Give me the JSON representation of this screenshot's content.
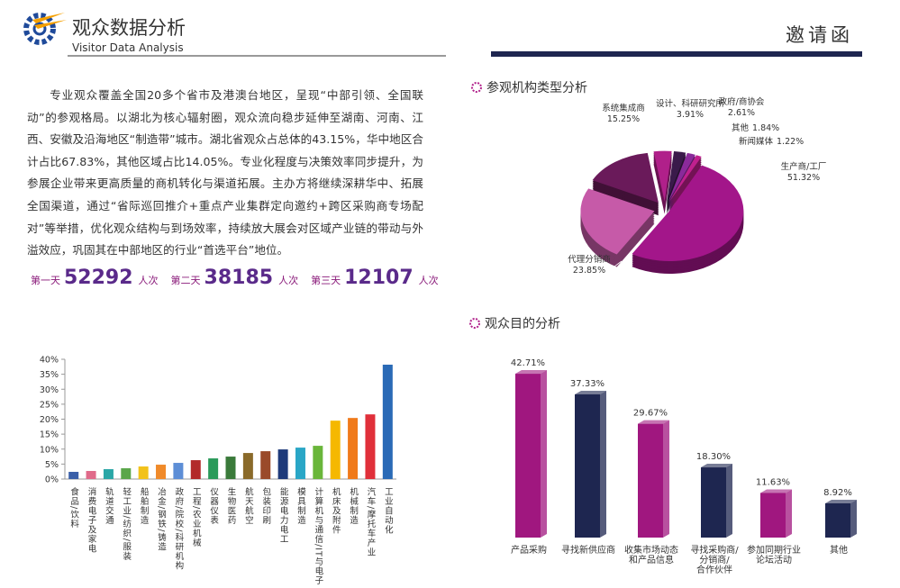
{
  "header": {
    "title": "观众数据分析",
    "subtitle": "Visitor Data Analysis",
    "badge": "邀请函"
  },
  "intro": "专业观众覆盖全国20多个省市及港澳台地区，呈现“中部引领、全国联动”的参观格局。以湖北为核心辐射圈，观众流向稳步延伸至湖南、河南、江西、安徽及沿海地区“制造带”城市。湖北省观众占总体的43.15%，华中地区合计占比67.83%，其他区域占比14.05%。专业化程度与决策效率同步提升，为参展企业带来更高质量的商机转化与渠道拓展。主办方将继续深耕华中、拓展全国渠道，通过“省际巡回推介+重点产业集群定向邀约+跨区采购商专场配对”等举措，优化观众结构与到场效率，持续放大展会对区域产业链的带动与外溢效应，巩固其在中部地区的行业“首选平台”地位。",
  "stats": [
    {
      "label": "第一天",
      "value": "52292",
      "unit": "人次"
    },
    {
      "label": "第二天",
      "value": "38185",
      "unit": "人次"
    },
    {
      "label": "第三天",
      "value": "12107",
      "unit": "人次"
    }
  ],
  "chart_data": [
    {
      "type": "bar",
      "categories": [
        "食品/饮料",
        "消费电子及家电",
        "轨道交通",
        "轻工业/纺织/服装",
        "船舶制造",
        "冶金/钢铁/铸造",
        "政府/院校/科研机构",
        "工程/农业机械",
        "仪器仪表",
        "生物医药",
        "航天航空",
        "包装印刷",
        "能源电力电工",
        "模具制造",
        "计算机与通信/IT与电子",
        "机床及附件",
        "机械制造",
        "汽车/摩托车产业",
        "工业自动化"
      ],
      "values": [
        2.4,
        2.7,
        3.3,
        3.6,
        4.2,
        4.8,
        5.4,
        6.3,
        6.9,
        7.5,
        8.7,
        9.3,
        9.9,
        10.5,
        11.1,
        19.5,
        20.4,
        21.6,
        38.2
      ],
      "colors": [
        "#3a5fa8",
        "#e06a8a",
        "#2aa6a6",
        "#5aa64a",
        "#f2c21a",
        "#f08a2a",
        "#5d8ed6",
        "#b22a2a",
        "#2a9a5a",
        "#3a7a3a",
        "#8a6a2a",
        "#9a4a2a",
        "#1e3a7a",
        "#2aa6c6",
        "#6ab63a",
        "#f5b800",
        "#f07a1a",
        "#e0303a",
        "#2a6ab6"
      ],
      "ylim": [
        0,
        40
      ],
      "yticks": [
        {
          "value": 0,
          "label": "0%"
        },
        {
          "value": 5,
          "label": "5%"
        },
        {
          "value": 10,
          "label": "10%"
        },
        {
          "value": 15,
          "label": "15%"
        },
        {
          "value": 20,
          "label": "20%"
        },
        {
          "value": 25,
          "label": "25%"
        },
        {
          "value": 30,
          "label": "30%"
        },
        {
          "value": 35,
          "label": "35%"
        },
        {
          "value": 40,
          "label": "40%"
        }
      ]
    },
    {
      "type": "pie",
      "title": "参观机构类型分析",
      "categories": [
        "设计、科研研究所",
        "政府/商协会",
        "其他",
        "新闻媒体",
        "生产商/工厂",
        "代理分销商",
        "系统集成商"
      ],
      "values": [
        3.91,
        2.61,
        1.84,
        1.22,
        51.32,
        23.85,
        15.25
      ],
      "value_labels": [
        "3.91%",
        "2.61%",
        "1.84%",
        "1.22%",
        "51.32%",
        "23.85%",
        "15.25%"
      ],
      "colors": [
        "#b0208a",
        "#3a1a4a",
        "#8a2a9a",
        "#c0208e",
        "#a3168a",
        "#c65aa8",
        "#6a1a5a"
      ]
    },
    {
      "type": "bar3d",
      "title": "观众目的分析",
      "categories": [
        [
          "产品采购"
        ],
        [
          "寻找新供应商"
        ],
        [
          "收集市场动态",
          "和产品信息"
        ],
        [
          "寻找采购商/",
          "分销商/",
          "合作伙伴"
        ],
        [
          "参加同期行业",
          "论坛活动"
        ],
        [
          "其他"
        ]
      ],
      "values": [
        42.71,
        37.33,
        29.67,
        18.3,
        11.63,
        8.92
      ],
      "value_labels": [
        "42.71%",
        "37.33%",
        "29.67%",
        "18.30%",
        "11.63%",
        "8.92%"
      ],
      "colors": [
        "#a0177f",
        "#1e2650",
        "#a0177f",
        "#1e2650",
        "#a0177f",
        "#1e2650"
      ]
    }
  ]
}
